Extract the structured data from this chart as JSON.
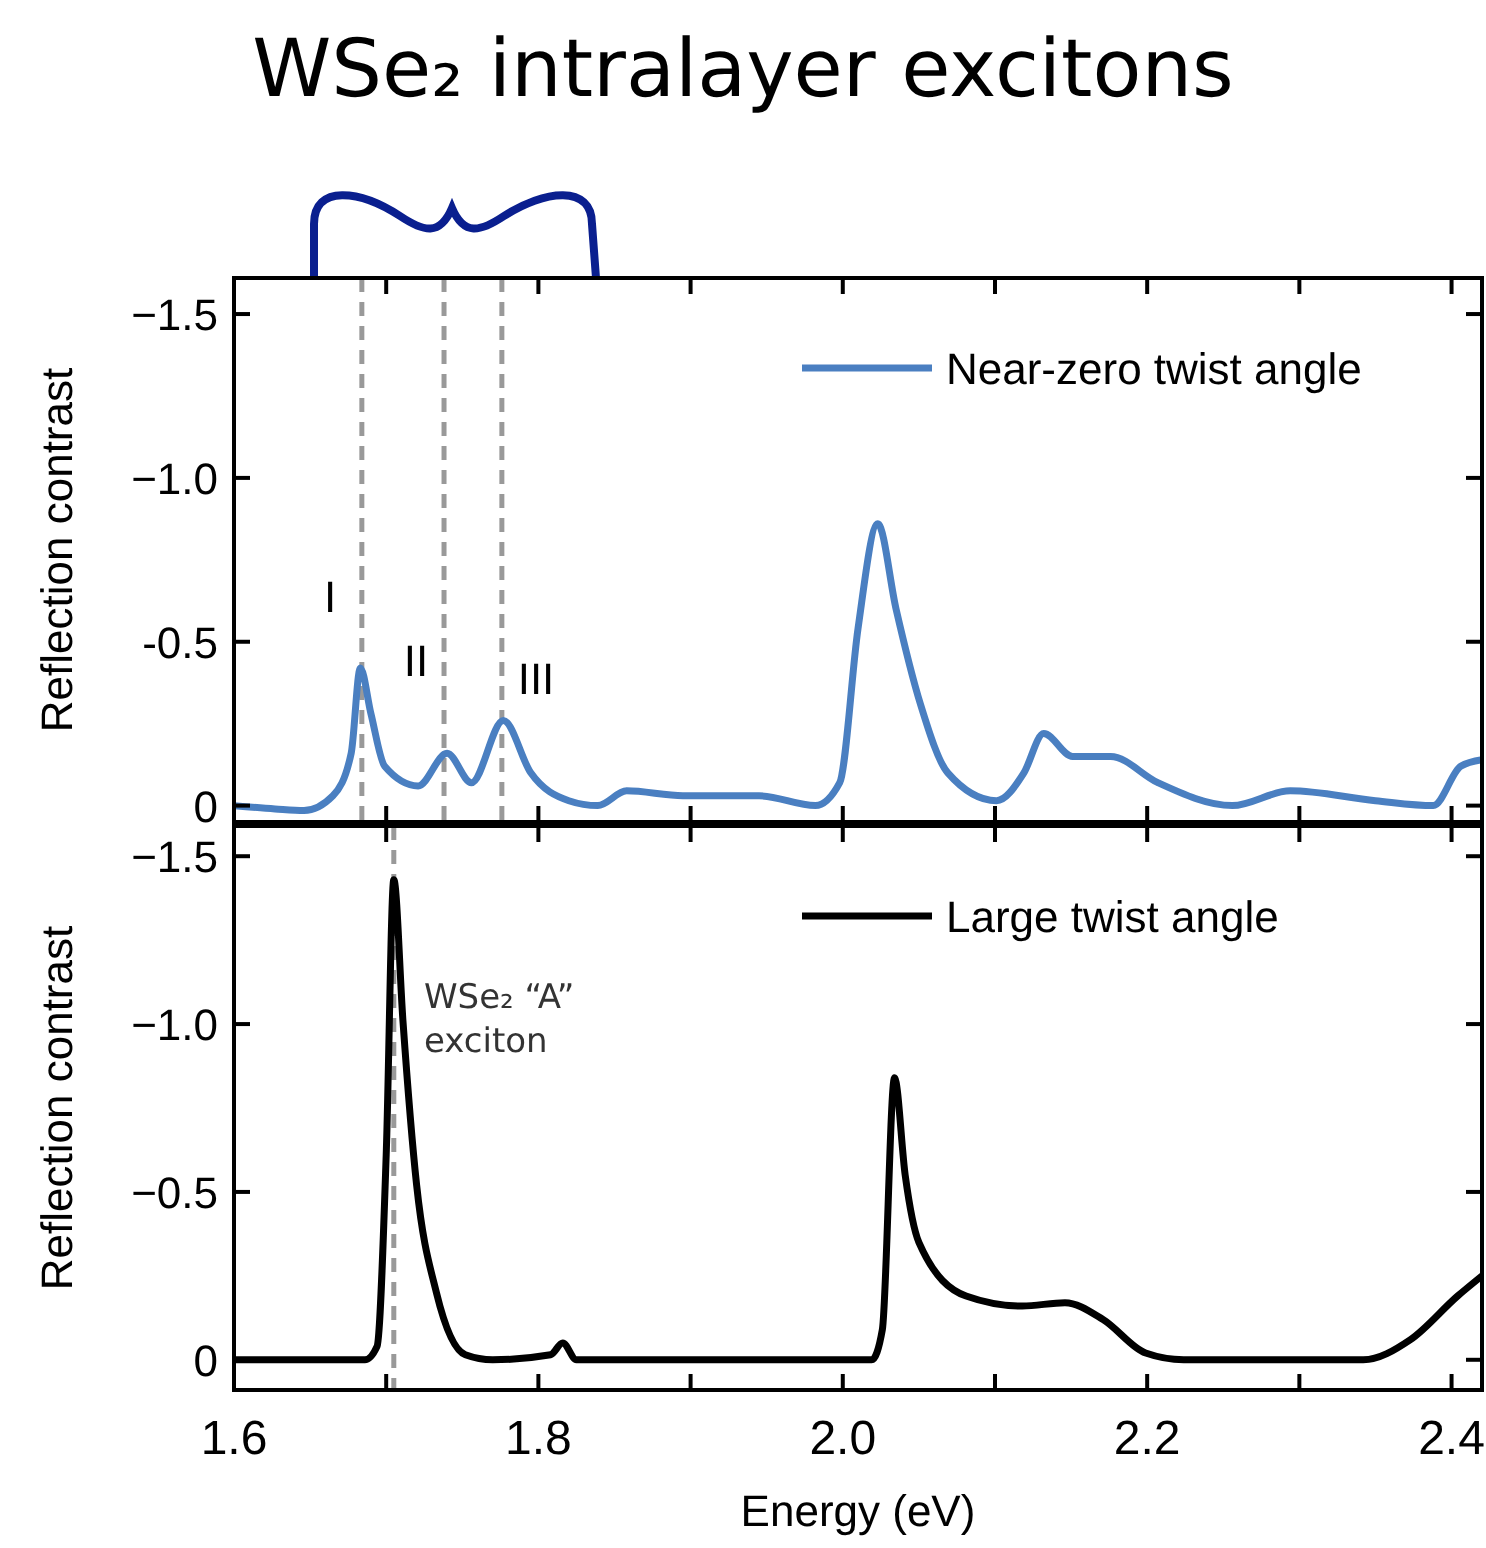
{
  "chart_data": [
    {
      "type": "line",
      "title": "WSe₂ intralayer excitons",
      "ylabel": "Reflection contrast",
      "legend": "top right",
      "tick_labels": "y",
      "xlim": [
        1.6,
        2.42
      ],
      "xticks": [
        {
          "value": 1.6,
          "label": null
        },
        {
          "value": 1.7,
          "label": null
        },
        {
          "value": 1.8,
          "label": null
        },
        {
          "value": 1.9,
          "label": null
        },
        {
          "value": 2.0,
          "label": null
        },
        {
          "value": 2.1,
          "label": null
        },
        {
          "value": 2.2,
          "label": null
        },
        {
          "value": 2.3,
          "label": null
        },
        {
          "value": 2.4,
          "label": null
        }
      ],
      "ylim": [
        0.05,
        -1.61
      ],
      "yticks": [
        {
          "value": -1.5,
          "label": "−1.5"
        },
        {
          "value": -1.0,
          "label": "−1.0"
        },
        {
          "value": -0.5,
          "label": "-0.5"
        },
        0
      ],
      "series": [
        {
          "name": "Near-zero twist angle",
          "color": "#4a7fc1",
          "x": [
            1.6,
            1.627,
            1.646,
            1.665,
            1.677,
            1.683,
            1.69,
            1.699,
            1.721,
            1.74,
            1.756,
            1.777,
            1.795,
            1.82,
            1.839,
            1.858,
            1.895,
            1.945,
            1.982,
            1.998,
            2.01,
            2.023,
            2.035,
            2.051,
            2.069,
            2.101,
            2.119,
            2.132,
            2.151,
            2.176,
            2.207,
            2.256,
            2.294,
            2.35,
            2.388,
            2.406,
            2.42
          ],
          "values": [
            0,
            0.01,
            0.015,
            -0.03,
            -0.16,
            -0.42,
            -0.28,
            -0.12,
            -0.06,
            -0.16,
            -0.07,
            -0.26,
            -0.1,
            -0.015,
            0,
            -0.045,
            -0.03,
            -0.03,
            0,
            -0.07,
            -0.54,
            -0.86,
            -0.6,
            -0.31,
            -0.1,
            -0.015,
            -0.1,
            -0.22,
            -0.15,
            -0.15,
            -0.07,
            0,
            -0.045,
            -0.015,
            0,
            -0.12,
            -0.14
          ]
        }
      ],
      "ref_lines": [
        {
          "axis": "x",
          "value": 1.684,
          "color": "#999999",
          "line_style": "dashed"
        },
        {
          "axis": "x",
          "value": 1.738,
          "color": "#999999",
          "line_style": "dashed"
        },
        {
          "axis": "x",
          "value": 1.776,
          "color": "#999999",
          "line_style": "dashed"
        }
      ],
      "annotations": [
        "I",
        "II",
        "III"
      ]
    },
    {
      "type": "line",
      "xlabel": "Energy (eV)",
      "ylabel": "Reflection contrast",
      "legend": "top right",
      "xlim": [
        1.6,
        2.42
      ],
      "xticks": [
        {
          "value": 1.6,
          "label": "1.6"
        },
        {
          "value": 1.7,
          "label": null
        },
        {
          "value": 1.8,
          "label": "1.8"
        },
        {
          "value": 1.9,
          "label": null
        },
        {
          "value": 2.0,
          "label": "2.0"
        },
        {
          "value": 2.1,
          "label": null
        },
        {
          "value": 2.2,
          "label": "2.2"
        },
        {
          "value": 2.3,
          "label": null
        },
        {
          "value": 2.4,
          "label": "2.4"
        }
      ],
      "ylim": [
        0.09,
        -1.59
      ],
      "yticks": [
        {
          "value": -1.5,
          "label": "−1.5"
        },
        {
          "value": -1.0,
          "label": "−1.0"
        },
        {
          "value": -0.5,
          "label": "−0.5"
        },
        0
      ],
      "series": [
        {
          "name": "Large twist angle",
          "color": "#000000",
          "x": [
            1.6,
            1.686,
            1.694,
            1.7,
            1.705,
            1.711,
            1.72,
            1.733,
            1.752,
            1.77,
            1.808,
            1.816,
            1.825,
            2.019,
            2.026,
            2.034,
            2.041,
            2.05,
            2.081,
            2.118,
            2.146,
            2.171,
            2.199,
            2.224,
            2.342,
            2.373,
            2.404,
            2.42
          ],
          "values": [
            0,
            0,
            -0.04,
            -0.61,
            -1.43,
            -1.01,
            -0.52,
            -0.2,
            -0.015,
            0,
            -0.015,
            -0.05,
            0,
            0,
            -0.09,
            -0.84,
            -0.55,
            -0.35,
            -0.19,
            -0.16,
            -0.17,
            -0.12,
            -0.02,
            0,
            0,
            -0.06,
            -0.19,
            -0.25
          ]
        }
      ],
      "ref_lines": [
        {
          "axis": "x",
          "value": 1.705,
          "color": "#999999",
          "line_style": "dashed"
        }
      ],
      "annotations": [
        "WSe₂ “A”\nexciton"
      ]
    }
  ]
}
